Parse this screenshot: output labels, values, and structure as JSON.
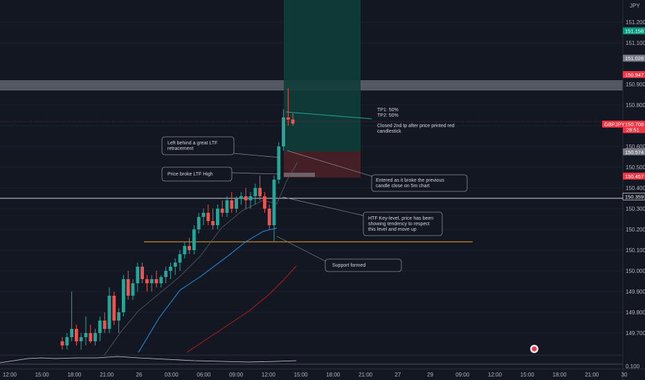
{
  "currency": "JPY",
  "symbol": "GBPJPY",
  "countdown": "28:51",
  "price_scale": [
    "151.200",
    "151.100",
    "150.900",
    "150.800",
    "150.700",
    "150.600",
    "150.500",
    "150.400",
    "150.300",
    "150.200",
    "150.100",
    "150.000",
    "149.900",
    "149.800",
    "149.700"
  ],
  "price_tags": [
    {
      "label": "151.158",
      "color": "#089981",
      "kind": "green"
    },
    {
      "label": "151.026",
      "color": "#787b86",
      "kind": "grey"
    },
    {
      "label": "150.947",
      "color": "#f23645",
      "kind": "red"
    },
    {
      "label": "150.708",
      "color": "#f23645",
      "kind": "current"
    },
    {
      "label": "150.574",
      "color": "#787b86",
      "kind": "grey"
    },
    {
      "label": "150.457",
      "color": "#f23645",
      "kind": "red"
    },
    {
      "label": "150.359",
      "color": "#ffffff",
      "kind": "white"
    }
  ],
  "time_labels": [
    "12:00",
    "15:00",
    "18:00",
    "21:00",
    "26",
    "03:00",
    "06:00",
    "09:00",
    "12:00",
    "15:00",
    "18:00",
    "21:00",
    "27",
    "29",
    "09:00",
    "12:00",
    "15:00",
    "18:00",
    "21:00",
    "30"
  ],
  "indicator_value": "0.100",
  "annotations": {
    "tp": [
      "TP1: 50%",
      "TP2: 50%"
    ],
    "closed": [
      "Closed 2nd tp after price printed red",
      "candlestick"
    ],
    "ltf_retrace": [
      "Left behind a great LTF",
      "retracement"
    ],
    "broke_high": "Price broke LTF High",
    "entered": [
      "Entered as it broke the previous",
      "candle close on 5m chart"
    ],
    "htf_key": [
      "HTF Key-level, price has been",
      "showing tendency to respect",
      "this level and move up"
    ],
    "support": "Support formed"
  },
  "colors": {
    "background": "#131722",
    "bull": "#26a69a",
    "bear": "#ef5350",
    "profit_zone": "#0f3d39",
    "stop_zone": "#4a2026",
    "ema_blue": "#2196f3",
    "ema_red": "#b71c1c"
  },
  "chart_data": {
    "type": "candlestick",
    "series_name": "GBPJPY",
    "ylim": [
      149.64,
      151.24
    ],
    "candles": [
      [
        149.66,
        149.68,
        149.62,
        149.64
      ],
      [
        149.64,
        149.7,
        149.62,
        149.68
      ],
      [
        149.68,
        149.9,
        149.66,
        149.72
      ],
      [
        149.72,
        149.74,
        149.64,
        149.66
      ],
      [
        149.66,
        149.7,
        149.62,
        149.68
      ],
      [
        149.68,
        149.78,
        149.64,
        149.7
      ],
      [
        149.7,
        149.74,
        149.65,
        149.66
      ],
      [
        149.66,
        149.72,
        149.64,
        149.7
      ],
      [
        149.7,
        149.78,
        149.66,
        149.76
      ],
      [
        149.76,
        149.8,
        149.7,
        149.72
      ],
      [
        149.72,
        149.92,
        149.7,
        149.88
      ],
      [
        149.88,
        149.9,
        149.74,
        149.76
      ],
      [
        149.76,
        149.82,
        149.7,
        149.8
      ],
      [
        149.8,
        149.98,
        149.78,
        149.96
      ],
      [
        149.96,
        150.0,
        149.86,
        149.88
      ],
      [
        149.88,
        149.96,
        149.86,
        149.94
      ],
      [
        149.94,
        150.04,
        149.9,
        150.02
      ],
      [
        150.02,
        150.04,
        149.94,
        149.96
      ],
      [
        149.96,
        149.98,
        149.9,
        149.94
      ],
      [
        149.94,
        149.98,
        149.9,
        149.96
      ],
      [
        149.96,
        150.0,
        149.92,
        149.94
      ],
      [
        149.94,
        149.98,
        149.92,
        149.97
      ],
      [
        149.97,
        150.02,
        149.94,
        150.0
      ],
      [
        150.0,
        150.04,
        149.96,
        150.02
      ],
      [
        150.02,
        150.06,
        149.98,
        150.04
      ],
      [
        150.04,
        150.1,
        150.0,
        150.08
      ],
      [
        150.08,
        150.14,
        150.06,
        150.12
      ],
      [
        150.12,
        150.16,
        150.08,
        150.1
      ],
      [
        150.1,
        150.22,
        150.08,
        150.2
      ],
      [
        150.2,
        150.28,
        150.18,
        150.26
      ],
      [
        150.26,
        150.3,
        150.22,
        150.28
      ],
      [
        150.28,
        150.32,
        150.22,
        150.24
      ],
      [
        150.24,
        150.3,
        150.2,
        150.22
      ],
      [
        150.22,
        150.32,
        150.2,
        150.3
      ],
      [
        150.3,
        150.34,
        150.26,
        150.28
      ],
      [
        150.28,
        150.36,
        150.26,
        150.34
      ],
      [
        150.34,
        150.38,
        150.28,
        150.3
      ],
      [
        150.3,
        150.36,
        150.28,
        150.35
      ],
      [
        150.35,
        150.38,
        150.32,
        150.36
      ],
      [
        150.36,
        150.4,
        150.3,
        150.34
      ],
      [
        150.34,
        150.38,
        150.3,
        150.36
      ],
      [
        150.36,
        150.42,
        150.32,
        150.4
      ],
      [
        150.4,
        150.46,
        150.34,
        150.36
      ],
      [
        150.36,
        150.38,
        150.28,
        150.3
      ],
      [
        150.3,
        150.32,
        150.2,
        150.22
      ],
      [
        150.22,
        150.46,
        150.14,
        150.44
      ],
      [
        150.44,
        150.62,
        150.42,
        150.6
      ],
      [
        150.6,
        150.78,
        150.58,
        150.74
      ],
      [
        150.74,
        150.88,
        150.7,
        150.73
      ],
      [
        150.73,
        150.76,
        150.7,
        150.71
      ]
    ]
  }
}
